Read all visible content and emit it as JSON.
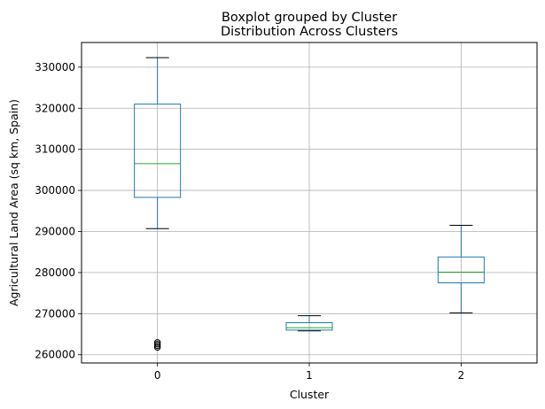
{
  "chart_data": {
    "type": "boxplot",
    "suptitle": "Boxplot grouped by Cluster",
    "title": "Distribution Across Clusters",
    "xlabel": "Cluster",
    "ylabel": "Agricultural Land Area (sq km, Spain)",
    "ylim": [
      258000,
      336000
    ],
    "y_ticks": [
      260000,
      270000,
      280000,
      290000,
      300000,
      310000,
      320000,
      330000
    ],
    "grid": true,
    "box_color": "#1f77b4",
    "median_color": "#2ca02c",
    "categories": [
      "0",
      "1",
      "2"
    ],
    "boxes": [
      {
        "category": "0",
        "whisker_low": 290700,
        "q1": 298300,
        "median": 306500,
        "q3": 321000,
        "whisker_high": 332300,
        "outliers": [
          261800,
          262200,
          262600,
          263000
        ]
      },
      {
        "category": "1",
        "whisker_low": 265800,
        "q1": 266000,
        "median": 266600,
        "q3": 267800,
        "whisker_high": 269500,
        "outliers": []
      },
      {
        "category": "2",
        "whisker_low": 270200,
        "q1": 277500,
        "median": 280100,
        "q3": 283800,
        "whisker_high": 291500,
        "outliers": []
      }
    ]
  }
}
